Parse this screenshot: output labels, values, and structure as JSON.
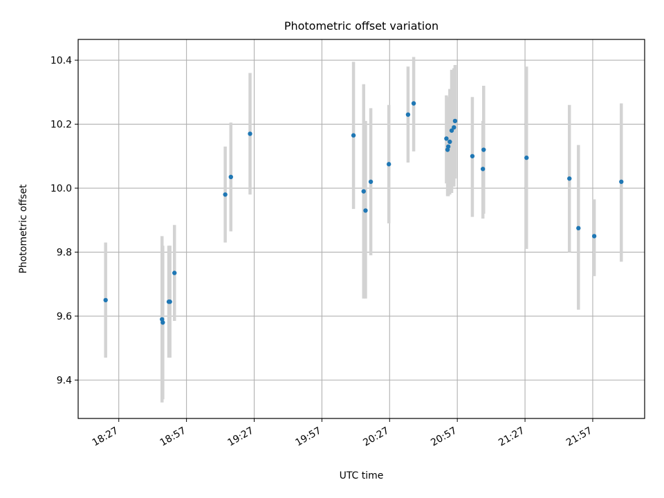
{
  "chart_data": {
    "type": "scatter",
    "title": "Photometric offset variation",
    "xlabel": "UTC time",
    "ylabel": "Photometric offset",
    "x_ticks": [
      "18:27",
      "18:57",
      "19:27",
      "19:57",
      "20:27",
      "20:57",
      "21:27",
      "21:57"
    ],
    "y_ticks": [
      "9.4",
      "9.6",
      "9.8",
      "10.0",
      "10.2",
      "10.4"
    ],
    "xlim": [
      "18:09",
      "22:20"
    ],
    "ylim": [
      9.28,
      10.465
    ],
    "grid": true,
    "colors": {
      "point": "#1f77b4",
      "errorbar": "#d3d3d3",
      "grid": "#b0b0b0"
    },
    "points": [
      {
        "time": "18:21:10",
        "y": 9.65,
        "err_low": 9.47,
        "err_high": 9.83
      },
      {
        "time": "18:46:10",
        "y": 9.59,
        "err_low": 9.33,
        "err_high": 9.85
      },
      {
        "time": "18:46:30",
        "y": 9.58,
        "err_low": 9.34,
        "err_high": 9.82
      },
      {
        "time": "18:49:10",
        "y": 9.645,
        "err_low": 9.47,
        "err_high": 9.82
      },
      {
        "time": "18:49:40",
        "y": 9.645,
        "err_low": 9.47,
        "err_high": 9.82
      },
      {
        "time": "18:51:40",
        "y": 9.735,
        "err_low": 9.585,
        "err_high": 9.885
      },
      {
        "time": "19:14:10",
        "y": 9.98,
        "err_low": 9.83,
        "err_high": 10.13
      },
      {
        "time": "19:16:40",
        "y": 10.035,
        "err_low": 9.865,
        "err_high": 10.205
      },
      {
        "time": "19:25:10",
        "y": 10.17,
        "err_low": 9.98,
        "err_high": 10.36
      },
      {
        "time": "20:11:00",
        "y": 10.165,
        "err_low": 9.935,
        "err_high": 10.395
      },
      {
        "time": "20:15:30",
        "y": 9.99,
        "err_low": 9.655,
        "err_high": 10.325
      },
      {
        "time": "20:16:20",
        "y": 9.93,
        "err_low": 9.655,
        "err_high": 10.21
      },
      {
        "time": "20:18:40",
        "y": 10.02,
        "err_low": 9.79,
        "err_high": 10.25
      },
      {
        "time": "20:26:40",
        "y": 10.075,
        "err_low": 9.89,
        "err_high": 10.26
      },
      {
        "time": "20:35:10",
        "y": 10.23,
        "err_low": 10.08,
        "err_high": 10.38
      },
      {
        "time": "20:37:40",
        "y": 10.265,
        "err_low": 10.115,
        "err_high": 10.41
      },
      {
        "time": "20:52:10",
        "y": 10.155,
        "err_low": 10.015,
        "err_high": 10.29
      },
      {
        "time": "20:52:40",
        "y": 10.12,
        "err_low": 9.975,
        "err_high": 10.265
      },
      {
        "time": "20:53:00",
        "y": 10.13,
        "err_low": 9.975,
        "err_high": 10.285
      },
      {
        "time": "20:53:40",
        "y": 10.145,
        "err_low": 9.98,
        "err_high": 10.31
      },
      {
        "time": "20:54:30",
        "y": 10.18,
        "err_low": 9.985,
        "err_high": 10.37
      },
      {
        "time": "20:55:30",
        "y": 10.19,
        "err_low": 10.005,
        "err_high": 10.375
      },
      {
        "time": "20:56:00",
        "y": 10.21,
        "err_low": 10.03,
        "err_high": 10.385
      },
      {
        "time": "21:03:40",
        "y": 10.1,
        "err_low": 9.91,
        "err_high": 10.285
      },
      {
        "time": "21:08:20",
        "y": 10.06,
        "err_low": 9.905,
        "err_high": 10.21
      },
      {
        "time": "21:08:40",
        "y": 10.12,
        "err_low": 9.92,
        "err_high": 10.32
      },
      {
        "time": "21:27:40",
        "y": 10.095,
        "err_low": 9.81,
        "err_high": 10.38
      },
      {
        "time": "21:46:40",
        "y": 10.03,
        "err_low": 9.8,
        "err_high": 10.26
      },
      {
        "time": "21:50:40",
        "y": 9.875,
        "err_low": 9.62,
        "err_high": 10.135
      },
      {
        "time": "21:57:40",
        "y": 9.85,
        "err_low": 9.725,
        "err_high": 9.965
      },
      {
        "time": "22:09:40",
        "y": 10.02,
        "err_low": 9.77,
        "err_high": 10.265
      }
    ]
  }
}
